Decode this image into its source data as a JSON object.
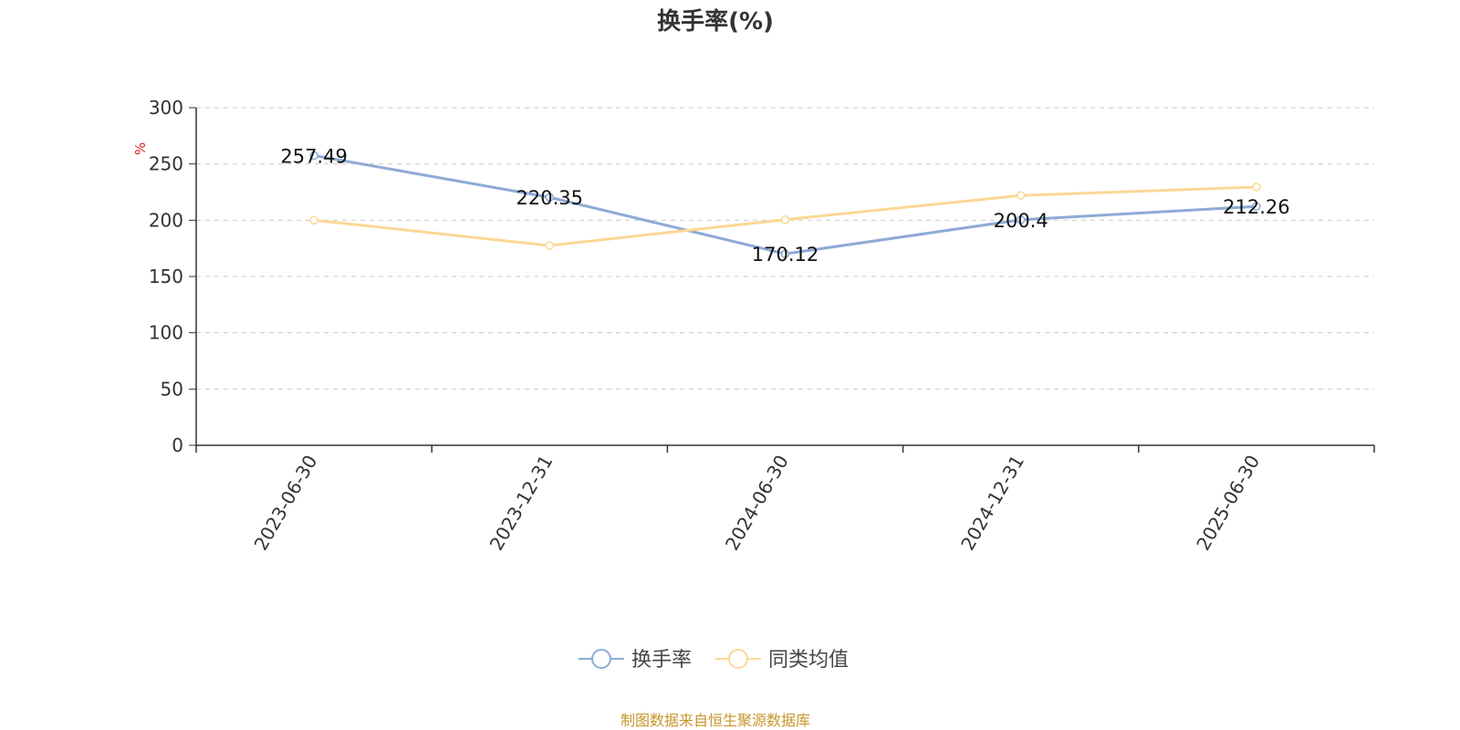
{
  "chart_data": {
    "type": "line",
    "title": "换手率(%)",
    "unit": "%",
    "categories": [
      "2023-06-30",
      "2023-12-31",
      "2024-06-30",
      "2024-12-31",
      "2025-06-30"
    ],
    "ylim": [
      0,
      300
    ],
    "yticks": [
      0,
      50,
      100,
      150,
      200,
      250,
      300
    ],
    "grid": true,
    "legend_position": "bottom",
    "series": [
      {
        "name": "换手率",
        "color": "#8eaad6",
        "values": [
          257.49,
          220.35,
          170.12,
          200.4,
          212.26
        ],
        "labels": [
          "257.49",
          "220.35",
          "170.12",
          "200.4",
          "212.26"
        ]
      },
      {
        "name": "同类均值",
        "color": "#fcd795",
        "values": [
          200,
          177.5,
          200.5,
          222,
          229.5
        ]
      }
    ]
  },
  "footer": {
    "source": "制图数据来自恒生聚源数据库"
  }
}
